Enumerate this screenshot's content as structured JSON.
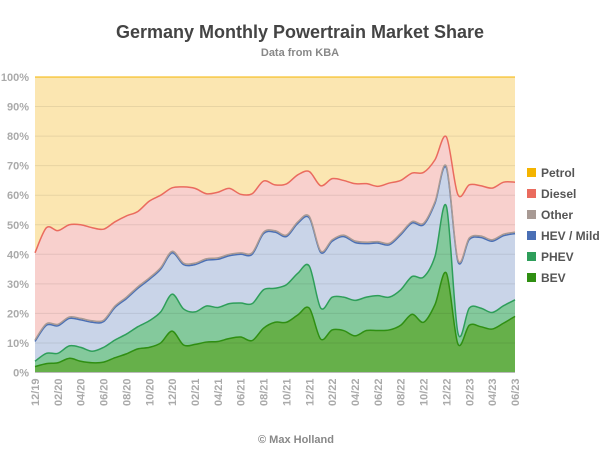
{
  "chart_data": {
    "type": "area",
    "stacked": true,
    "title": "Germany Monthly Powertrain Market Share",
    "subtitle": "Data from KBA",
    "footer": "© Max Holland",
    "xlabel": "",
    "ylabel": "",
    "ylim": [
      0,
      100
    ],
    "y_ticks": [
      "0%",
      "10%",
      "20%",
      "30%",
      "40%",
      "50%",
      "60%",
      "70%",
      "80%",
      "90%",
      "100%"
    ],
    "x_tick_labels": [
      "12/19",
      "02/20",
      "04/20",
      "06/20",
      "08/20",
      "10/20",
      "12/20",
      "02/21",
      "04/21",
      "06/21",
      "08/21",
      "10/21",
      "12/21",
      "02/22",
      "04/22",
      "06/22",
      "08/22",
      "10/22",
      "12/22",
      "02/23",
      "04/23",
      "06/23"
    ],
    "grid": true,
    "legend_position": "right",
    "x": [
      "12/19",
      "01/20",
      "02/20",
      "03/20",
      "04/20",
      "05/20",
      "06/20",
      "07/20",
      "08/20",
      "09/20",
      "10/20",
      "11/20",
      "12/20",
      "01/21",
      "02/21",
      "03/21",
      "04/21",
      "05/21",
      "06/21",
      "07/21",
      "08/21",
      "09/21",
      "10/21",
      "11/21",
      "12/21",
      "01/22",
      "02/22",
      "03/22",
      "04/22",
      "05/22",
      "06/22",
      "07/22",
      "08/22",
      "09/22",
      "10/22",
      "11/22",
      "12/22",
      "01/23",
      "02/23",
      "03/23",
      "04/23",
      "05/23",
      "06/23"
    ],
    "series": [
      {
        "name": "BEV",
        "color": "#2f8f12",
        "fill": "#66b04a",
        "values": [
          2,
          3,
          3.3,
          4.8,
          3.8,
          3.3,
          3.5,
          5,
          6.3,
          8,
          8.5,
          10,
          14,
          9.3,
          9.5,
          10.3,
          10.5,
          11.5,
          12,
          10.8,
          15,
          17,
          17,
          19.5,
          21.8,
          11.3,
          14.4,
          14.2,
          12.4,
          14.2,
          14.2,
          14.4,
          16,
          19.7,
          17,
          23,
          33.6,
          9.7,
          16,
          15.5,
          14.7,
          16.7,
          19
        ]
      },
      {
        "name": "PHEV",
        "color": "#2e9e5a",
        "fill": "#84c99c",
        "values": [
          1.8,
          3.5,
          3.2,
          4.2,
          4.7,
          3.9,
          5,
          6,
          6.7,
          7.5,
          9,
          10.5,
          12.5,
          12.2,
          11,
          12.2,
          11.5,
          11.8,
          11.5,
          12.5,
          13,
          11.5,
          12.7,
          14.1,
          14.2,
          10.5,
          11.1,
          11.3,
          12,
          11.3,
          11.8,
          11.1,
          12,
          12.8,
          15.3,
          16.3,
          22.6,
          3.8,
          5.8,
          6.3,
          5.6,
          5.9,
          5.6
        ]
      },
      {
        "name": "HEV / Mild",
        "color": "#4a6fb5",
        "fill": "#c9d4e8",
        "values": [
          6.7,
          9.5,
          9.3,
          9.3,
          9.3,
          9.8,
          8.7,
          11,
          12,
          13,
          14,
          14.5,
          14,
          15,
          16,
          15.5,
          16.3,
          16.2,
          16.5,
          16.7,
          19,
          19,
          16.3,
          16.9,
          16.3,
          18.8,
          18.9,
          20.5,
          19.6,
          18.1,
          17.8,
          17.7,
          18.6,
          18.1,
          17.7,
          18,
          13,
          24.1,
          23.2,
          23.9,
          24.1,
          23.7,
          22.4
        ]
      },
      {
        "name": "Other",
        "color": "#a89a94",
        "fill": "#d9cfcb",
        "values": [
          0.5,
          0.5,
          0.5,
          0.5,
          0.5,
          0.5,
          0.5,
          0.5,
          0.5,
          0.5,
          0.5,
          0.5,
          0.5,
          0.5,
          0.5,
          0.5,
          0.5,
          0.5,
          0.5,
          0.5,
          0.5,
          0.5,
          0.5,
          0.5,
          0.5,
          0.5,
          0.5,
          0.5,
          0.5,
          0.5,
          0.5,
          0.5,
          0.5,
          0.5,
          0.5,
          0.5,
          0.5,
          0.5,
          0.5,
          0.5,
          0.5,
          0.5,
          0.5
        ]
      },
      {
        "name": "Diesel",
        "color": "#ea6b5e",
        "fill": "#f8d0cd",
        "values": [
          29.5,
          32.5,
          31.7,
          31.2,
          31.7,
          31.5,
          30.8,
          28.5,
          27.5,
          25.5,
          26,
          24.5,
          21.5,
          25.8,
          25.3,
          22,
          22.2,
          22.3,
          19.8,
          20,
          17.3,
          15.5,
          17.3,
          15.9,
          15.2,
          22.1,
          20.7,
          18.5,
          19.4,
          19.8,
          18.7,
          20.4,
          17.9,
          16.4,
          17.2,
          14.2,
          10,
          22.1,
          18,
          17,
          17.5,
          17.6,
          16.9
        ]
      },
      {
        "name": "Petrol",
        "color": "#f4b400",
        "fill": "#fbe6b1",
        "values": [
          59.5,
          51,
          52,
          50,
          50,
          51,
          51.5,
          49,
          47,
          45.5,
          42,
          40,
          37.5,
          37.2,
          37.7,
          39.5,
          39,
          37.7,
          39.7,
          39.5,
          35.2,
          36.5,
          36.2,
          33.1,
          32,
          36.8,
          34.4,
          35,
          36.1,
          36.1,
          37,
          35.9,
          35,
          32.5,
          32.3,
          28,
          20.3,
          39.8,
          36.5,
          36.8,
          37.6,
          35.6,
          35.6
        ]
      }
    ],
    "legend_order": [
      "Petrol",
      "Diesel",
      "Other",
      "HEV / Mild",
      "PHEV",
      "BEV"
    ]
  }
}
